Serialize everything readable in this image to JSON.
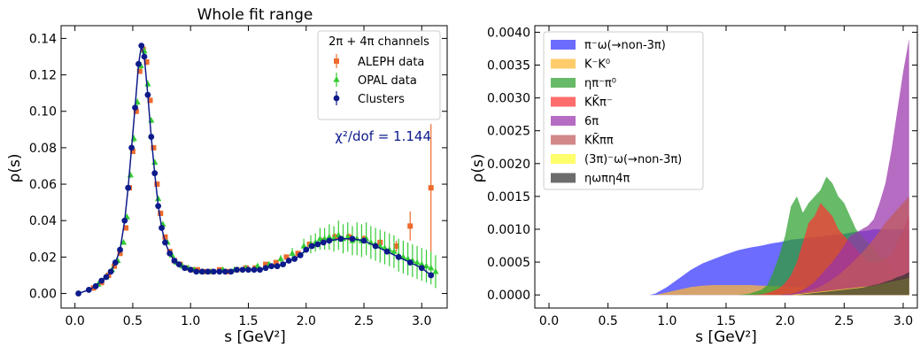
{
  "chart_data": [
    {
      "type": "scatter",
      "title": "Whole fit range",
      "xlabel": "s  [GeV²]",
      "ylabel": "ρ(s)",
      "xlim": [
        -0.12,
        3.22
      ],
      "ylim": [
        -0.008,
        0.147
      ],
      "xticks": [
        "0.0",
        "0.5",
        "1.0",
        "1.5",
        "2.0",
        "2.5",
        "3.0"
      ],
      "yticks": [
        "0.00",
        "0.02",
        "0.04",
        "0.06",
        "0.08",
        "0.10",
        "0.12",
        "0.14"
      ],
      "legend_title": "2π + 4π channels",
      "legend_position": "upper-right",
      "annotation": "χ²/dof = 1.144",
      "series": [
        {
          "name": "ALEPH data",
          "color": "#ee6a2d",
          "marker": "square",
          "x": [
            0.16,
            0.23,
            0.29,
            0.34,
            0.39,
            0.44,
            0.47,
            0.5,
            0.53,
            0.56,
            0.59,
            0.62,
            0.65,
            0.68,
            0.71,
            0.74,
            0.78,
            0.82,
            0.86,
            0.91,
            0.96,
            1.01,
            1.06,
            1.12,
            1.18,
            1.25,
            1.32,
            1.4,
            1.48,
            1.56,
            1.65,
            1.74,
            1.83,
            1.93,
            2.03,
            2.14,
            2.25,
            2.37,
            2.5,
            2.64,
            2.78,
            2.9,
            3.08
          ],
          "y": [
            0.003,
            0.006,
            0.01,
            0.015,
            0.022,
            0.036,
            0.058,
            0.078,
            0.1,
            0.122,
            0.134,
            0.127,
            0.106,
            0.08,
            0.06,
            0.044,
            0.031,
            0.023,
            0.018,
            0.016,
            0.014,
            0.013,
            0.013,
            0.012,
            0.012,
            0.013,
            0.012,
            0.013,
            0.014,
            0.014,
            0.016,
            0.017,
            0.02,
            0.022,
            0.027,
            0.029,
            0.031,
            0.031,
            0.03,
            0.028,
            0.026,
            0.037,
            0.058
          ],
          "yerr": [
            0.0005,
            0.0005,
            0.0005,
            0.0005,
            0.0005,
            0.0008,
            0.001,
            0.001,
            0.0015,
            0.0015,
            0.0015,
            0.0015,
            0.0015,
            0.001,
            0.001,
            0.0008,
            0.0005,
            0.0005,
            0.0005,
            0.0005,
            0.0005,
            0.0005,
            0.0005,
            0.0005,
            0.0005,
            0.0005,
            0.0005,
            0.0005,
            0.0005,
            0.0005,
            0.0005,
            0.0005,
            0.0008,
            0.001,
            0.0015,
            0.0015,
            0.002,
            0.002,
            0.002,
            0.0025,
            0.003,
            0.008,
            0.035
          ]
        },
        {
          "name": "OPAL data",
          "color": "#33cc33",
          "marker": "triangle",
          "x": [
            0.2,
            0.27,
            0.32,
            0.37,
            0.42,
            0.45,
            0.48,
            0.51,
            0.54,
            0.57,
            0.6,
            0.63,
            0.66,
            0.69,
            0.72,
            0.76,
            0.8,
            0.84,
            0.88,
            0.93,
            0.98,
            1.03,
            1.1,
            1.18,
            1.28,
            1.38,
            1.48,
            1.58,
            1.68,
            1.78,
            1.88,
            1.98,
            2.04,
            2.08,
            2.12,
            2.16,
            2.2,
            2.24,
            2.28,
            2.32,
            2.36,
            2.4,
            2.44,
            2.48,
            2.52,
            2.56,
            2.6,
            2.64,
            2.68,
            2.72,
            2.76,
            2.8,
            2.84,
            2.88,
            2.92,
            2.96,
            3.0,
            3.04,
            3.08,
            3.12
          ],
          "y": [
            0.005,
            0.009,
            0.013,
            0.018,
            0.028,
            0.042,
            0.065,
            0.085,
            0.105,
            0.125,
            0.133,
            0.115,
            0.095,
            0.072,
            0.052,
            0.038,
            0.028,
            0.021,
            0.017,
            0.015,
            0.014,
            0.013,
            0.012,
            0.012,
            0.013,
            0.013,
            0.014,
            0.015,
            0.016,
            0.019,
            0.022,
            0.026,
            0.027,
            0.028,
            0.03,
            0.03,
            0.031,
            0.03,
            0.032,
            0.03,
            0.031,
            0.029,
            0.03,
            0.029,
            0.03,
            0.028,
            0.027,
            0.026,
            0.025,
            0.024,
            0.023,
            0.021,
            0.02,
            0.019,
            0.018,
            0.017,
            0.016,
            0.015,
            0.014,
            0.012
          ],
          "yerr": [
            0.0005,
            0.0005,
            0.0005,
            0.001,
            0.001,
            0.0015,
            0.0015,
            0.002,
            0.002,
            0.002,
            0.002,
            0.002,
            0.0015,
            0.0015,
            0.001,
            0.001,
            0.0008,
            0.0005,
            0.0005,
            0.0005,
            0.0005,
            0.0005,
            0.0005,
            0.0005,
            0.0005,
            0.0005,
            0.0005,
            0.0008,
            0.001,
            0.002,
            0.003,
            0.004,
            0.005,
            0.005,
            0.006,
            0.006,
            0.007,
            0.007,
            0.008,
            0.008,
            0.008,
            0.008,
            0.009,
            0.009,
            0.009,
            0.009,
            0.009,
            0.009,
            0.009,
            0.009,
            0.009,
            0.009,
            0.009,
            0.009,
            0.009,
            0.009,
            0.009,
            0.009,
            0.009,
            0.009
          ]
        },
        {
          "name": "Clusters",
          "color": "#0d1a8a",
          "marker": "circle",
          "line": true,
          "x": [
            0.03,
            0.12,
            0.18,
            0.23,
            0.27,
            0.31,
            0.35,
            0.39,
            0.43,
            0.46,
            0.49,
            0.52,
            0.55,
            0.575,
            0.6,
            0.63,
            0.66,
            0.69,
            0.72,
            0.75,
            0.78,
            0.82,
            0.86,
            0.9,
            0.95,
            1.0,
            1.05,
            1.1,
            1.15,
            1.2,
            1.25,
            1.3,
            1.35,
            1.4,
            1.45,
            1.5,
            1.55,
            1.6,
            1.65,
            1.7,
            1.75,
            1.8,
            1.85,
            1.9,
            1.95,
            2.0,
            2.05,
            2.1,
            2.15,
            2.2,
            2.3,
            2.4,
            2.5,
            2.6,
            2.7,
            2.8,
            2.9,
            3.0,
            3.08
          ],
          "y": [
            0.0,
            0.002,
            0.004,
            0.007,
            0.009,
            0.012,
            0.017,
            0.024,
            0.04,
            0.058,
            0.08,
            0.102,
            0.126,
            0.136,
            0.13,
            0.109,
            0.086,
            0.066,
            0.048,
            0.036,
            0.028,
            0.022,
            0.018,
            0.016,
            0.014,
            0.013,
            0.012,
            0.012,
            0.012,
            0.012,
            0.012,
            0.012,
            0.012,
            0.013,
            0.013,
            0.013,
            0.013,
            0.013,
            0.014,
            0.015,
            0.015,
            0.016,
            0.018,
            0.019,
            0.021,
            0.024,
            0.026,
            0.027,
            0.028,
            0.029,
            0.03,
            0.03,
            0.029,
            0.026,
            0.023,
            0.02,
            0.017,
            0.014,
            0.01
          ]
        }
      ]
    },
    {
      "type": "area",
      "title": "",
      "xlabel": "s  [GeV²]",
      "ylabel": "ρ(s)",
      "xlim": [
        -0.12,
        3.12
      ],
      "ylim": [
        -0.0002,
        0.0041
      ],
      "xticks": [
        "0.0",
        "0.5",
        "1.0",
        "1.5",
        "2.0",
        "2.5",
        "3.0"
      ],
      "yticks": [
        "0.0000",
        "0.0005",
        "0.0010",
        "0.0015",
        "0.0020",
        "0.0025",
        "0.0030",
        "0.0035",
        "0.0040"
      ],
      "legend_position": "upper-left",
      "x": [
        0.05,
        0.85,
        0.9,
        1.0,
        1.1,
        1.2,
        1.3,
        1.4,
        1.5,
        1.6,
        1.7,
        1.8,
        1.85,
        1.9,
        1.95,
        2.0,
        2.05,
        2.1,
        2.15,
        2.2,
        2.25,
        2.3,
        2.35,
        2.4,
        2.45,
        2.5,
        2.55,
        2.6,
        2.65,
        2.7,
        2.75,
        2.8,
        2.85,
        2.9,
        2.95,
        3.0,
        3.05
      ],
      "series": [
        {
          "name": "π⁻ω(→non-3π)",
          "color": "#3333ff",
          "alpha": 0.72,
          "values": [
            0,
            0,
            2e-05,
            0.00012,
            0.00025,
            0.00038,
            0.00048,
            0.00055,
            0.00062,
            0.00068,
            0.00072,
            0.00075,
            0.00077,
            0.00079,
            0.0008,
            0.00082,
            0.00084,
            0.00085,
            0.00086,
            0.00087,
            0.00088,
            0.00089,
            0.0009,
            0.00091,
            0.00092,
            0.00093,
            0.00095,
            0.00096,
            0.00097,
            0.00098,
            0.001,
            0.001,
            0.001,
            0.001,
            0.001,
            0.001,
            0.001
          ]
        },
        {
          "name": "K⁻K⁰",
          "color": "#ffb833",
          "alpha": 0.72,
          "values": [
            0,
            0,
            0,
            4e-05,
            8e-05,
            0.00012,
            0.00014,
            0.00015,
            0.00015,
            0.00015,
            0.00015,
            0.00014,
            0.00014,
            0.00013,
            0.00013,
            0.00013,
            0.00012,
            0.00012,
            0.00012,
            0.00011,
            0.00011,
            0.0001,
            0.0001,
            0.0001,
            9e-05,
            9e-05,
            9e-05,
            8e-05,
            8e-05,
            8e-05,
            7e-05,
            7e-05,
            7e-05,
            6e-05,
            6e-05,
            6e-05,
            6e-05
          ]
        },
        {
          "name": "ηπ⁻π⁰",
          "color": "#2ca02c",
          "alpha": 0.72,
          "values": [
            0,
            0,
            0,
            0,
            0,
            0,
            0,
            0,
            0,
            0,
            2e-05,
            8e-05,
            0.00015,
            0.00035,
            0.0006,
            0.0009,
            0.00135,
            0.0015,
            0.00125,
            0.0014,
            0.0015,
            0.0016,
            0.0018,
            0.0017,
            0.0015,
            0.0014,
            0.0012,
            0.001,
            0.0009,
            0.0008,
            0.0007,
            0.0006,
            0.0005,
            0.0004,
            0.0003,
            0.0002,
            0.0001
          ]
        },
        {
          "name": "KK̄π⁻",
          "color": "#ff3333",
          "alpha": 0.72,
          "values": [
            0,
            0,
            0,
            0,
            0,
            0,
            0,
            0,
            0,
            0,
            0,
            1e-05,
            3e-05,
            6e-05,
            0.0001,
            0.00018,
            0.0003,
            0.0005,
            0.0008,
            0.0011,
            0.0012,
            0.0014,
            0.0013,
            0.0012,
            0.001,
            0.0009,
            0.0008,
            0.0007,
            0.0006,
            0.0005,
            0.0005,
            0.0005,
            0.00055,
            0.0006,
            0.0008,
            0.001,
            0.0012
          ]
        },
        {
          "name": "6π",
          "color": "#9933aa",
          "alpha": 0.72,
          "values": [
            0,
            0,
            0,
            0,
            0,
            0,
            0,
            0,
            0,
            0,
            0,
            0,
            0,
            0,
            0,
            1e-05,
            2e-05,
            4e-05,
            8e-05,
            0.00013,
            0.0002,
            0.0003,
            0.0004,
            0.0005,
            0.00062,
            0.00075,
            0.0009,
            0.00095,
            0.001,
            0.00105,
            0.00115,
            0.0014,
            0.0017,
            0.0022,
            0.0028,
            0.0034,
            0.0039
          ]
        },
        {
          "name": "KK̄ππ",
          "color": "#c05a5a",
          "alpha": 0.72,
          "values": [
            0,
            0,
            0,
            0,
            0,
            0,
            0,
            0,
            0,
            0,
            0,
            0,
            0,
            0,
            0,
            0,
            1e-05,
            2e-05,
            4e-05,
            6e-05,
            9e-05,
            0.00013,
            0.00018,
            0.00024,
            0.0003,
            0.00038,
            0.00046,
            0.00055,
            0.00064,
            0.00074,
            0.00085,
            0.00097,
            0.0011,
            0.0012,
            0.0013,
            0.0014,
            0.0015
          ]
        },
        {
          "name": "(3π)⁻ω(→non-3π)",
          "color": "#ffff33",
          "alpha": 0.72,
          "values": [
            0,
            0,
            0,
            0,
            0,
            0,
            0,
            0,
            0,
            0,
            0,
            0,
            0,
            0,
            0,
            0,
            0,
            1e-05,
            2e-05,
            3e-05,
            4e-05,
            5e-05,
            6e-05,
            7e-05,
            8e-05,
            9e-05,
            0.0001,
            0.00011,
            0.00012,
            0.00013,
            0.00014,
            0.00016,
            0.00018,
            0.0002,
            0.00022,
            0.00024,
            0.00026
          ]
        },
        {
          "name": "ηωπη4π",
          "color": "#333333",
          "alpha": 0.72,
          "values": [
            0,
            0,
            0,
            0,
            0,
            0,
            0,
            0,
            0,
            0,
            0,
            0,
            0,
            0,
            0,
            0,
            0,
            0,
            1e-05,
            2e-05,
            3e-05,
            4e-05,
            5e-05,
            6e-05,
            7e-05,
            8e-05,
            9e-05,
            0.0001,
            0.00011,
            0.00013,
            0.00015,
            0.00017,
            0.0002,
            0.00023,
            0.00027,
            0.0003,
            0.00035
          ]
        }
      ]
    }
  ]
}
